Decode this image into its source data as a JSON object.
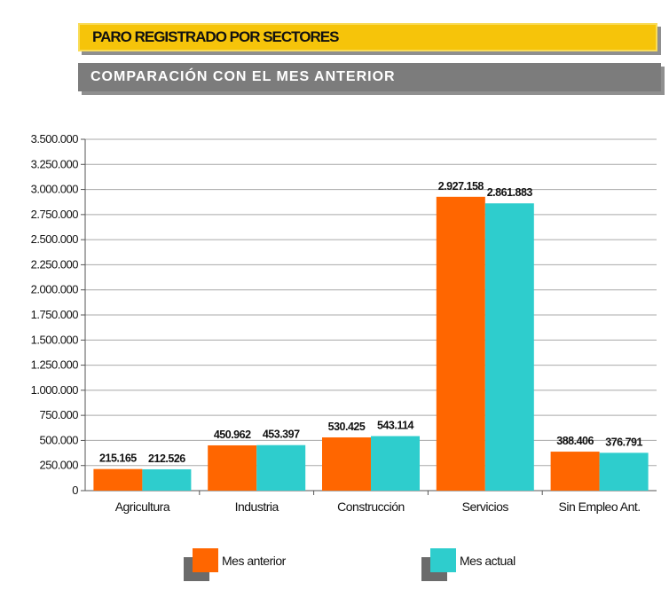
{
  "header": {
    "title": "PARO REGISTRADO POR SECTORES",
    "subtitle": "COMPARACIÓN CON EL MES ANTERIOR"
  },
  "colors": {
    "mes_anterior": "#ff6600",
    "mes_actual": "#2ecdcd"
  },
  "chart_data": {
    "type": "bar",
    "title": "PARO REGISTRADO POR SECTORES",
    "subtitle": "COMPARACIÓN CON EL MES ANTERIOR",
    "xlabel": "",
    "ylabel": "",
    "ylim": [
      0,
      3500000
    ],
    "yticks": [
      0,
      250000,
      500000,
      750000,
      1000000,
      1250000,
      1500000,
      1750000,
      2000000,
      2250000,
      2500000,
      2750000,
      3000000,
      3250000,
      3500000
    ],
    "ytick_labels": [
      "0",
      "250.000",
      "500.000",
      "750.000",
      "1.000.000",
      "1.250.000",
      "1.500.000",
      "1.750.000",
      "2.000.000",
      "2.250.000",
      "2.500.000",
      "2.750.000",
      "3.000.000",
      "3.250.000",
      "3.500.000"
    ],
    "categories": [
      "Agricultura",
      "Industria",
      "Construcción",
      "Servicios",
      "Sin Empleo Ant."
    ],
    "series": [
      {
        "name": "Mes anterior",
        "values": [
          215165,
          450962,
          530425,
          2927158,
          388406
        ],
        "labels": [
          "215.165",
          "450.962",
          "530.425",
          "2.927.158",
          "388.406"
        ]
      },
      {
        "name": "Mes actual",
        "values": [
          212526,
          453397,
          543114,
          2861883,
          376791
        ],
        "labels": [
          "212.526",
          "453.397",
          "543.114",
          "2.861.883",
          "376.791"
        ]
      }
    ],
    "grid": true,
    "legend_position": "bottom"
  }
}
